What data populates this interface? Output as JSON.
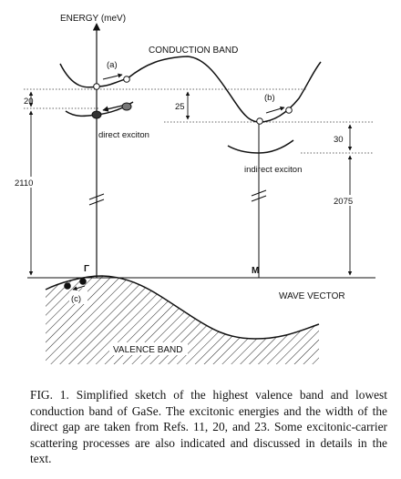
{
  "figure": {
    "axis_y_label": "ENERGY (meV)",
    "axis_x_label": "WAVE    VECTOR",
    "conduction_band_label": "CONDUCTION BAND",
    "valence_band_label": "VALENCE BAND",
    "direct_exciton_label": "direct exciton",
    "indirect_exciton_label": "indirect exciton",
    "gamma_label": "Γ",
    "m_label": "M",
    "process_a_label": "(a)",
    "process_b_label": "(b)",
    "process_c_label": "(c)",
    "dim_20": "20",
    "dim_2110": "2110",
    "dim_25": "25",
    "dim_30": "30",
    "dim_2075": "2075"
  },
  "caption": {
    "fig_label": "FIG. 1.",
    "text": " Simplified sketch of the highest valence band and lowest conduction band of GaSe. The excitonic energies and the width of the direct gap are taken from Refs. 11, 20, and 23. Some excitonic-carrier scattering processes are also indicated and discussed in details in the text."
  }
}
